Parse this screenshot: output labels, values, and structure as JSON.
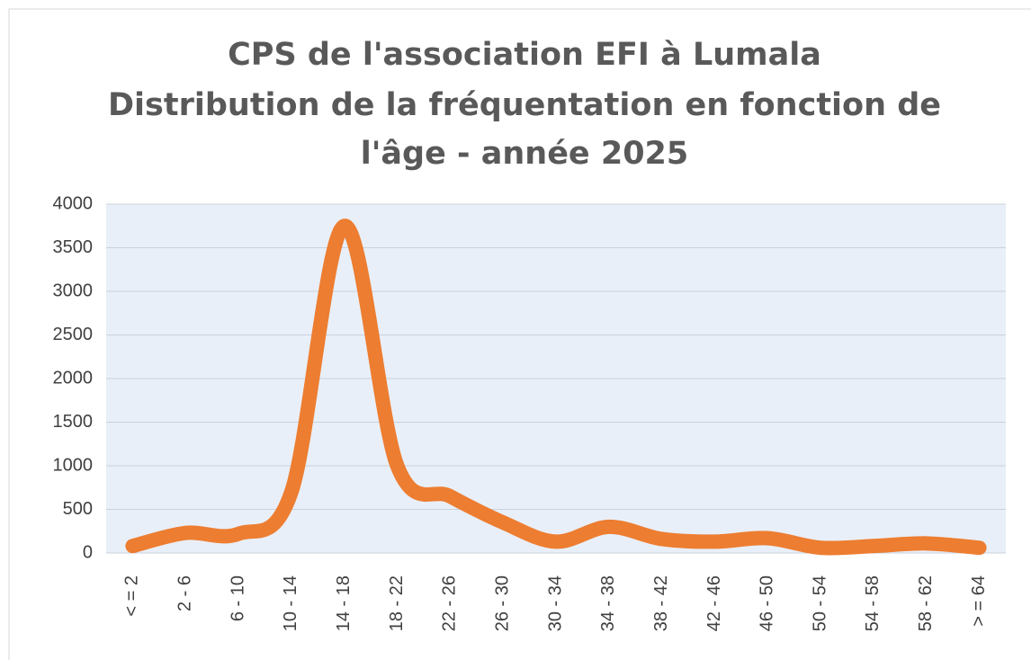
{
  "chart_data": {
    "type": "line",
    "title": [
      "CPS de l'association EFI à Lumala",
      "Distribution de la fréquentation en fonction de",
      "l'âge - année 2025"
    ],
    "categories": [
      "< = 2",
      "2 - 6",
      "6 - 10",
      "10 - 14",
      "14 - 18",
      "18 - 22",
      "22 - 26",
      "26 - 30",
      "30 - 34",
      "34 - 38",
      "38 - 42",
      "42 - 46",
      "46 - 50",
      "50 - 54",
      "54 - 58",
      "58 - 62",
      "> = 64"
    ],
    "values": [
      80,
      230,
      220,
      700,
      3750,
      1000,
      650,
      350,
      130,
      300,
      160,
      130,
      170,
      60,
      80,
      110,
      60
    ],
    "color": "#ed7d31",
    "smooth": true,
    "ylim": [
      0,
      4000
    ],
    "yticks": [
      0,
      500,
      1000,
      1500,
      2000,
      2500,
      3000,
      3500,
      4000
    ],
    "grid": true
  }
}
